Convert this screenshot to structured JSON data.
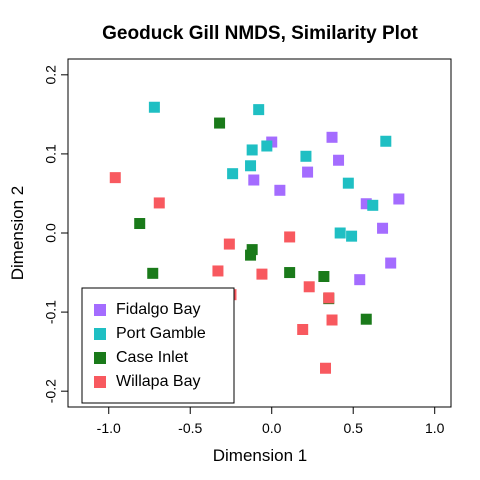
{
  "chart_data": {
    "type": "scatter",
    "title": "Geoduck Gill NMDS, Similarity Plot",
    "xlabel": "Dimension 1",
    "ylabel": "Dimension 2",
    "xlim": [
      -1.25,
      1.1
    ],
    "ylim": [
      -0.22,
      0.22
    ],
    "xticks": [
      -1.0,
      -0.5,
      0.0,
      0.5,
      1.0
    ],
    "xtick_labels": [
      "-1.0",
      "-0.5",
      "0.0",
      "0.5",
      "1.0"
    ],
    "yticks": [
      -0.2,
      -0.1,
      0.0,
      0.1,
      0.2
    ],
    "ytick_labels": [
      "-0.2",
      "-0.1",
      "0.0",
      "0.1",
      "0.2"
    ],
    "grid": false,
    "legend_position": "bottom-left",
    "series": [
      {
        "name": "Fidalgo Bay",
        "color": "#A46CFF",
        "points": [
          [
            -0.11,
            0.067
          ],
          [
            0.0,
            0.115
          ],
          [
            0.05,
            0.054
          ],
          [
            0.22,
            0.077
          ],
          [
            0.37,
            0.121
          ],
          [
            0.41,
            0.092
          ],
          [
            0.58,
            0.037
          ],
          [
            0.78,
            0.043
          ],
          [
            0.68,
            0.006
          ],
          [
            0.54,
            -0.059
          ],
          [
            0.73,
            -0.038
          ]
        ]
      },
      {
        "name": "Port Gamble",
        "color": "#1FBFC3",
        "points": [
          [
            -0.72,
            0.159
          ],
          [
            -0.08,
            0.156
          ],
          [
            -0.03,
            0.11
          ],
          [
            -0.12,
            0.105
          ],
          [
            -0.13,
            0.085
          ],
          [
            -0.24,
            0.075
          ],
          [
            0.21,
            0.097
          ],
          [
            0.47,
            0.063
          ],
          [
            0.62,
            0.035
          ],
          [
            0.7,
            0.116
          ],
          [
            0.42,
            0.0
          ],
          [
            0.49,
            -0.004
          ]
        ]
      },
      {
        "name": "Case Inlet",
        "color": "#1A7A1A",
        "points": [
          [
            -0.32,
            0.139
          ],
          [
            -0.81,
            0.012
          ],
          [
            -0.73,
            -0.051
          ],
          [
            -0.12,
            -0.021
          ],
          [
            -0.13,
            -0.028
          ],
          [
            0.11,
            -0.05
          ],
          [
            0.32,
            -0.055
          ],
          [
            0.35,
            -0.083
          ],
          [
            0.58,
            -0.109
          ]
        ]
      },
      {
        "name": "Willapa Bay",
        "color": "#F8595F",
        "points": [
          [
            -0.96,
            0.07
          ],
          [
            -0.69,
            0.038
          ],
          [
            -0.26,
            -0.014
          ],
          [
            -0.33,
            -0.048
          ],
          [
            -0.06,
            -0.052
          ],
          [
            0.11,
            -0.005
          ],
          [
            0.23,
            -0.068
          ],
          [
            0.35,
            -0.082
          ],
          [
            -0.25,
            -0.078
          ],
          [
            0.19,
            -0.122
          ],
          [
            0.37,
            -0.11
          ],
          [
            0.33,
            -0.171
          ]
        ]
      }
    ]
  }
}
